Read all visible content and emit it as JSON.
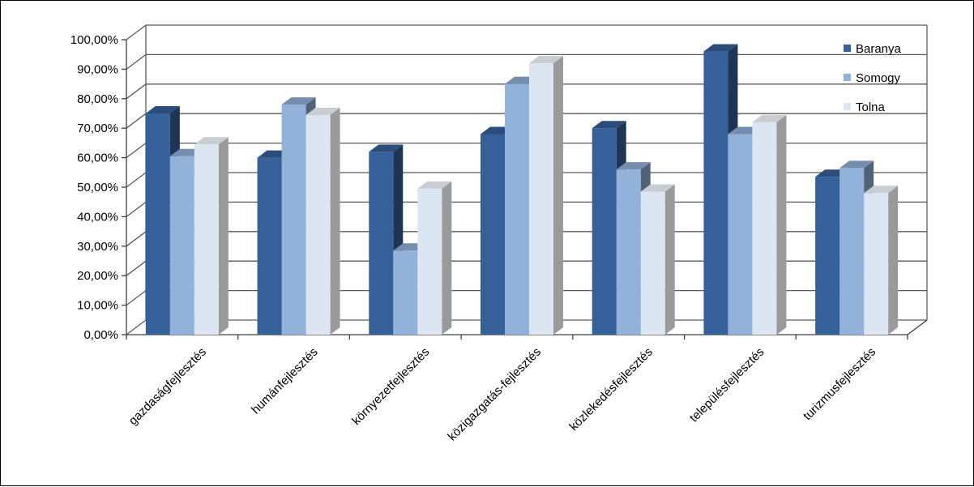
{
  "chart_data": {
    "type": "bar",
    "categories": [
      "gazdaságfejlesztés",
      "humánfejlesztés",
      "környezetfejlesztés",
      "közigazgatás-fejlesztés",
      "közlekedésfejlesztés",
      "településfejlesztés",
      "turizmusfejlesztés"
    ],
    "series": [
      {
        "name": "Baranya",
        "color": "#36609A",
        "values": [
          75,
          60,
          62,
          68,
          70,
          96,
          53.5
        ]
      },
      {
        "name": "Somogy",
        "color": "#93B2DA",
        "values": [
          60.5,
          78,
          28.5,
          85,
          56,
          68,
          56.5
        ]
      },
      {
        "name": "Tolna",
        "color": "#DCE6F2",
        "values": [
          64.5,
          74.5,
          49.5,
          92,
          48.5,
          72,
          48
        ]
      }
    ],
    "y_tick_labels": [
      "0,00%",
      "10,00%",
      "20,00%",
      "30,00%",
      "40,00%",
      "50,00%",
      "60,00%",
      "70,00%",
      "80,00%",
      "90,00%",
      "100,00%"
    ],
    "ylim": [
      0,
      100
    ],
    "grid": true,
    "legend": "top-right",
    "title": "",
    "xlabel": "",
    "ylabel": ""
  }
}
